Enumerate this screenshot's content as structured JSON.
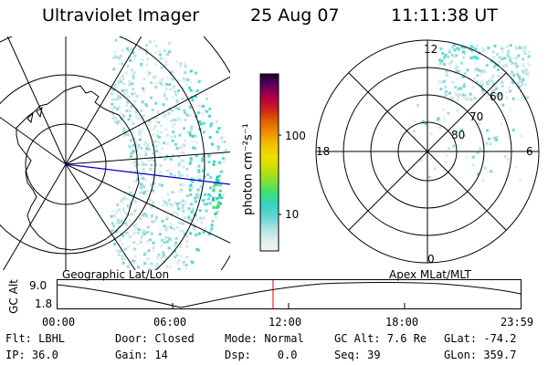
{
  "header": {
    "instrument": "Ultraviolet Imager",
    "date": "25 Aug 07",
    "time": "11:11:38 UT"
  },
  "left_panel": {
    "caption": "Geographic Lat/Lon"
  },
  "right_panel": {
    "caption": "Apex MLat/MLT",
    "mlt_labels": {
      "top": "12",
      "left": "18",
      "right": "6",
      "bottom": "0"
    },
    "mlat_labels": [
      "60",
      "70",
      "80"
    ]
  },
  "colorbar": {
    "unit_label": "photon cm⁻²s⁻¹",
    "ticks": [
      "100",
      "10"
    ],
    "scale": "log",
    "colors": [
      "#f5f5f5",
      "#d9eeee",
      "#a8e0e0",
      "#5fd3d3",
      "#30d4bf",
      "#40e070",
      "#8ae030",
      "#c8e000",
      "#eee000",
      "#f0c000",
      "#f09000",
      "#e06000",
      "#d02020",
      "#b00040",
      "#600060",
      "#1a0030"
    ]
  },
  "altitude_strip": {
    "ylabel": "GC Alt",
    "ytick": "9.0",
    "ytick2": "1.8",
    "xticks": [
      "00:00",
      "06:00",
      "12:00",
      "18:00",
      "23:59"
    ],
    "current_time_fraction": 0.4665,
    "marker_color": "#dd0000"
  },
  "status": {
    "row1": {
      "flt": "Flt: LBHL",
      "door": "Door: Closed",
      "mode": "Mode: Normal",
      "gcalt": "GC Alt: 7.6 Re",
      "glat": "GLat: -74.2"
    },
    "row2": {
      "ip": "IP: 36.0",
      "gain": "Gain: 14",
      "dsp": "Dsp:    0.0",
      "seq": "Seq: 39",
      "glon": "GLon: 359.7"
    }
  }
}
